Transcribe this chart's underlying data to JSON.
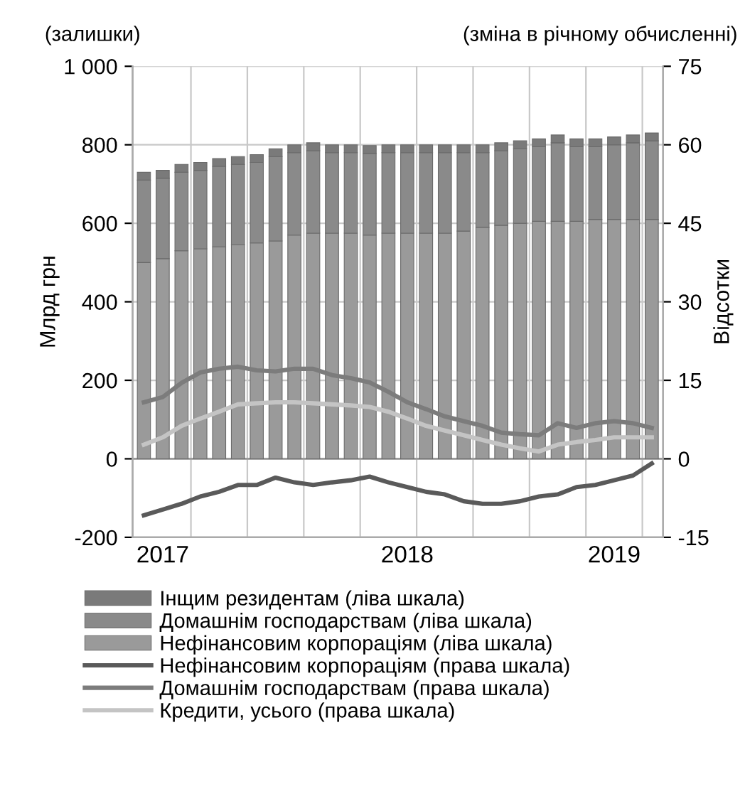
{
  "chart_data": {
    "type": "bar",
    "stacked": true,
    "categories": [
      null,
      "2017",
      null,
      null,
      null,
      null,
      null,
      null,
      null,
      null,
      null,
      null,
      null,
      null,
      "2018",
      null,
      null,
      null,
      null,
      null,
      null,
      null,
      null,
      null,
      null,
      "2019",
      null,
      null
    ],
    "ylabel": "Млрд грн",
    "y2label": "Відсотки",
    "annotations": [
      "(залишки)",
      "(зміна в річному обчисленні)"
    ],
    "ylim": [
      -200,
      1000
    ],
    "yticks": [
      -200,
      0,
      200,
      400,
      600,
      {
        "value": 800,
        "label": "800"
      },
      {
        "value": 1000,
        "label": "1 000"
      }
    ],
    "y2lim": [
      -15,
      75
    ],
    "y2ticks": [
      -15,
      0,
      15,
      30,
      45,
      60,
      75
    ],
    "grid": true,
    "legend": "bottom",
    "series": [
      {
        "name": "Нефінансовим корпораціям (ліва шкала)",
        "color": "#9a9a9a",
        "values": [
          500,
          510,
          530,
          535,
          540,
          545,
          550,
          555,
          570,
          575,
          575,
          575,
          570,
          575,
          575,
          575,
          575,
          580,
          590,
          595,
          600,
          605,
          605,
          605,
          610,
          610,
          610,
          610
        ]
      },
      {
        "name": "Домашнім господарствам (ліва шкала)",
        "color": "#8a8a8a",
        "values": [
          210,
          205,
          200,
          200,
          205,
          205,
          205,
          215,
          210,
          210,
          205,
          205,
          208,
          205,
          205,
          205,
          205,
          200,
          190,
          190,
          190,
          190,
          200,
          190,
          185,
          190,
          195,
          200
        ]
      },
      {
        "name": "Інщим резидентам (ліва шкала)",
        "color": "#7a7a7a",
        "values": [
          20,
          20,
          20,
          20,
          20,
          20,
          20,
          20,
          20,
          20,
          20,
          20,
          20,
          20,
          20,
          20,
          20,
          20,
          20,
          20,
          20,
          20,
          20,
          20,
          20,
          20,
          20,
          20
        ]
      },
      {
        "name": "Нефінансовим корпораціям (права шкала)",
        "type": "line",
        "axis": "y2",
        "color": "#5a5a5a",
        "values": [
          -10.8,
          -9.7,
          -8.6,
          -7.2,
          -6.3,
          -5.0,
          -5.0,
          -3.6,
          -4.5,
          -5.0,
          -4.5,
          -4.1,
          -3.4,
          -4.5,
          -5.4,
          -6.3,
          -6.8,
          -8.1,
          -8.6,
          -8.6,
          -8.1,
          -7.2,
          -6.8,
          -5.4,
          -5.0,
          -4.1,
          -3.2,
          -0.9
        ]
      },
      {
        "name": "Домашнім господарствам (права шкала)",
        "type": "line",
        "axis": "y2",
        "color": "#7c7c7c",
        "values": [
          10.8,
          11.8,
          14.5,
          16.5,
          17.2,
          17.6,
          16.9,
          16.7,
          17.2,
          17.2,
          16.0,
          15.4,
          14.6,
          12.8,
          10.8,
          9.5,
          8.1,
          7.2,
          6.3,
          5.0,
          4.7,
          4.5,
          6.8,
          5.9,
          6.8,
          7.2,
          6.8,
          5.9
        ]
      },
      {
        "name": "Кредити, усього (права шкала)",
        "type": "line",
        "axis": "y2",
        "color": "#c4c4c4",
        "values": [
          2.7,
          4.1,
          6.3,
          7.7,
          9.0,
          10.4,
          10.6,
          10.8,
          10.8,
          10.6,
          10.4,
          10.2,
          9.9,
          9.0,
          7.7,
          6.3,
          5.4,
          4.5,
          3.6,
          2.7,
          2.0,
          1.4,
          2.7,
          3.2,
          3.6,
          4.1,
          4.1,
          4.1
        ]
      }
    ]
  }
}
